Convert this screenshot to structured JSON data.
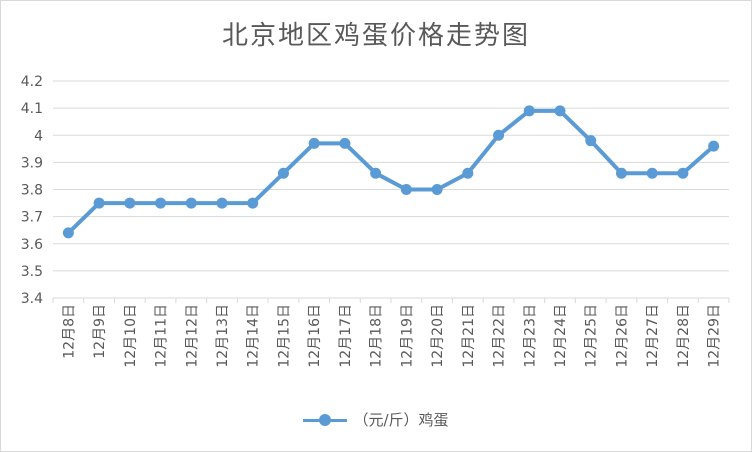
{
  "chart_data": {
    "type": "line",
    "title": "北京地区鸡蛋价格走势图",
    "categories": [
      "12月8日",
      "12月9日",
      "12月10日",
      "12月11日",
      "12月12日",
      "12月13日",
      "12月14日",
      "12月15日",
      "12月16日",
      "12月17日",
      "12月18日",
      "12月19日",
      "12月20日",
      "12月21日",
      "12月22日",
      "12月23日",
      "12月24日",
      "12月25日",
      "12月26日",
      "12月27日",
      "12月28日",
      "12月29日"
    ],
    "series": [
      {
        "name": "（元/斤）鸡蛋",
        "values": [
          3.64,
          3.75,
          3.75,
          3.75,
          3.75,
          3.75,
          3.75,
          3.86,
          3.97,
          3.97,
          3.86,
          3.8,
          3.8,
          3.86,
          4.0,
          4.09,
          4.09,
          3.98,
          3.86,
          3.86,
          3.86,
          3.96
        ],
        "color": "#5b9bd5"
      }
    ],
    "ylim": [
      3.4,
      4.2
    ],
    "yticks": [
      "3.4",
      "3.5",
      "3.6",
      "3.7",
      "3.8",
      "3.9",
      "4",
      "4.1",
      "4.2"
    ],
    "grid": true,
    "legend_position": "bottom"
  }
}
